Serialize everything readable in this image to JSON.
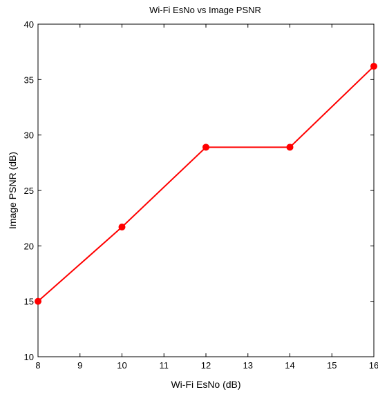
{
  "chart_data": {
    "type": "line",
    "title": "Wi-Fi EsNo vs Image PSNR",
    "xlabel": "Wi-Fi EsNo (dB)",
    "ylabel": "Image PSNR (dB)",
    "xlim": [
      8,
      16
    ],
    "ylim": [
      10,
      40
    ],
    "xticks": [
      8,
      9,
      10,
      11,
      12,
      13,
      14,
      15,
      16
    ],
    "yticks": [
      10,
      15,
      20,
      25,
      30,
      35,
      40
    ],
    "grid": false,
    "series": [
      {
        "x": [
          8,
          10,
          12,
          14,
          16
        ],
        "y": [
          15.0,
          21.7,
          28.9,
          28.9,
          36.2
        ],
        "color": "#ff0000",
        "marker": "circle"
      }
    ]
  }
}
